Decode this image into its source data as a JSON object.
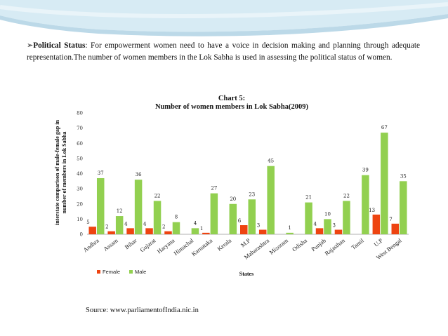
{
  "paragraph": {
    "bullet": "➢",
    "heading": "Political Status",
    "text": ": For empowerment women need to have a voice in decision making and planning through adequate representation.The number of women members in the Lok Sabha  is used in assessing the political status of women."
  },
  "source": "Source:  www.parliamentofIndia.nic.in",
  "colors": {
    "female": "#ee4411",
    "male": "#92d050",
    "banner": "#cfe6f1"
  },
  "chart_data": {
    "type": "bar",
    "title_line1": "Chart 5:",
    "title_line2": "Number of women members in Lok Sabha(2009)",
    "xlabel": "States",
    "ylabel_line1": "interstate comparison of male-female gap in",
    "ylabel_line2": "number of members in Lok Sabha",
    "ylim": [
      0,
      80
    ],
    "yticks": [
      0,
      10,
      20,
      30,
      40,
      50,
      60,
      70,
      80
    ],
    "legend_position": "bottom-left",
    "categories": [
      "Andhra",
      "Assam",
      "Bihar",
      "Gujarat",
      "Haryana",
      "Himachal",
      "Karnataka",
      "Kerala",
      "M.P",
      "Maharashtra",
      "Mizoram",
      "Odisha",
      "Punjab",
      "Rajasthan",
      "Tamil",
      "U.P",
      "West Bengal"
    ],
    "series": [
      {
        "name": "Female",
        "values": [
          5,
          2,
          4,
          4,
          2,
          null,
          1,
          null,
          6,
          3,
          null,
          null,
          4,
          3,
          null,
          13,
          7
        ],
        "labels": [
          "5",
          "2",
          "4",
          "4",
          "2",
          "",
          "1",
          "",
          "6",
          "3",
          "",
          "",
          "4",
          "3",
          "",
          "13",
          "7"
        ]
      },
      {
        "name": "Male",
        "values": [
          37,
          12,
          36,
          22,
          8,
          4,
          27,
          20,
          23,
          45,
          1,
          21,
          10,
          22,
          39,
          67,
          35
        ],
        "labels": [
          "37",
          "12",
          "36",
          "22",
          "8",
          "4",
          "27",
          "20",
          "23",
          "45",
          "1",
          "21",
          "10",
          "22",
          "39",
          "67",
          "35"
        ]
      }
    ]
  }
}
